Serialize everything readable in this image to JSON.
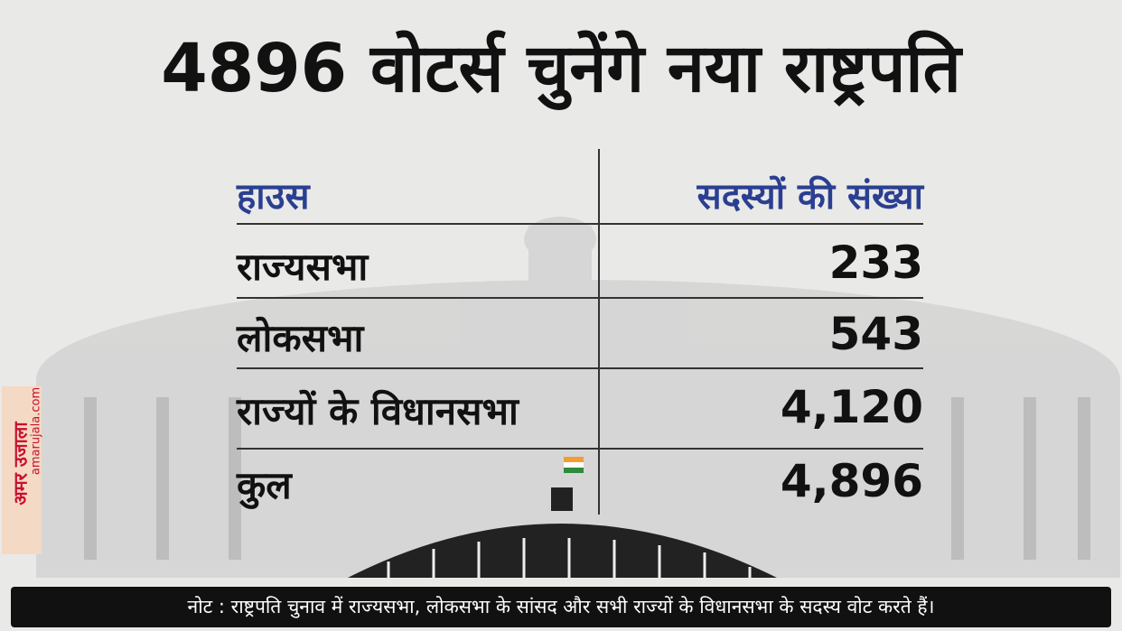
{
  "header": {
    "title": "4896 वोटर्स चुनेंगे नया राष्ट्रपति"
  },
  "table": {
    "columns": [
      "हाउस",
      "सदस्यों की संख्या"
    ],
    "rows": [
      [
        "राज्यसभा",
        "233"
      ],
      [
        "लोकसभा",
        "543"
      ],
      [
        "राज्यों के विधानसभा",
        "4,120"
      ],
      [
        "कुल",
        "4,896"
      ]
    ]
  },
  "note": "नोट : राष्ट्रपति चुनाव में राज्यसभा, लोकसभा के सांसद और सभी राज्यों के विधानसभा के सदस्य वोट करते हैं।",
  "logo": {
    "brand": "अमर उजाला",
    "site": "amarujala.com"
  }
}
